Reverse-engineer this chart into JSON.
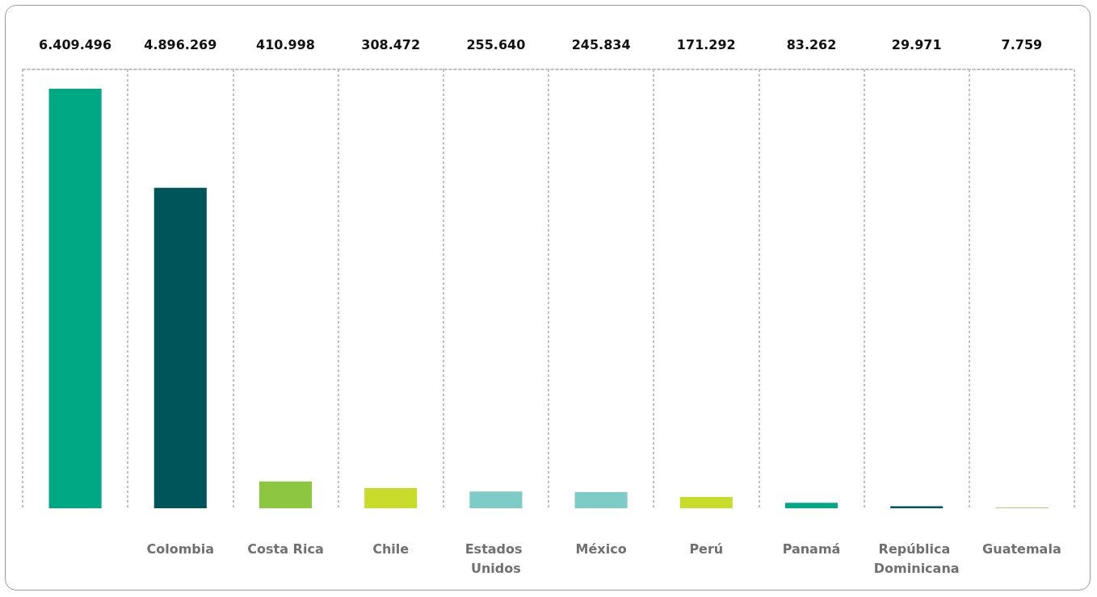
{
  "chart_data": {
    "type": "bar",
    "categories": [
      null,
      "Colombia",
      "Costa Rica",
      "Chile",
      "Estados Unidos",
      "México",
      "Perú",
      "Panamá",
      "República Dominicana",
      "Guatemala"
    ],
    "values": [
      6409496,
      4896269,
      410998,
      308472,
      255640,
      245834,
      171292,
      83262,
      29971,
      7759
    ],
    "colors": [
      "#00a884",
      "#00555a",
      "#8dc63f",
      "#c8dc2c",
      "#7dcdc6",
      "#7dcdc6",
      "#c8dc2c",
      "#00a884",
      "#00555a",
      "#8dc63f"
    ],
    "value_labels": [
      "6.409.496",
      "4.896.269",
      "410.998",
      "308.472",
      "255.640",
      "245.834",
      "171.292",
      "83.262",
      "29.971",
      "7.759"
    ],
    "grid": "x"
  }
}
